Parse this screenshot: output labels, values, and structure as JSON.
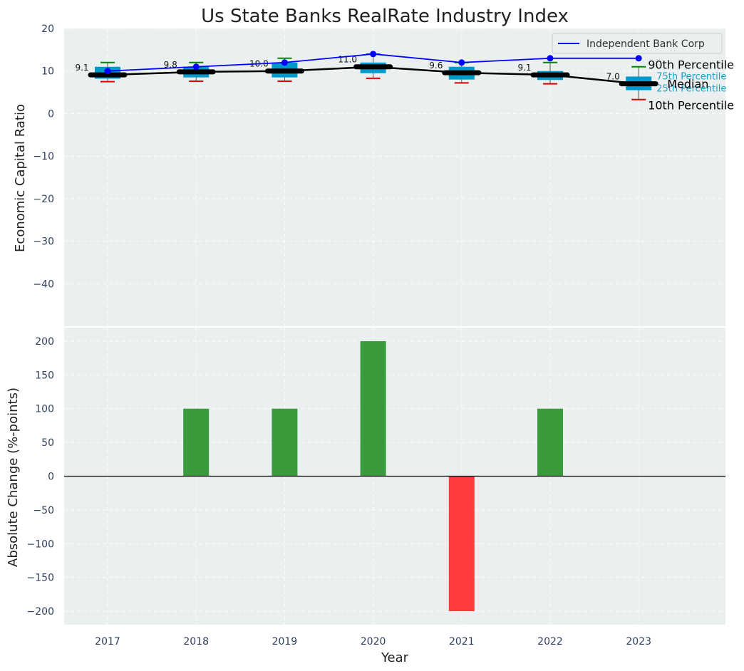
{
  "colors": {
    "panel_bg": "#eaeff0",
    "box": "#0099cc",
    "median_line": "#000000",
    "bank_line": "#0000ff",
    "whisker_top": "#008800",
    "whisker_bottom": "#dd0000",
    "bar_pos": "#3a9b3c",
    "bar_neg": "#ff3b3f"
  },
  "chart_data": [
    {
      "type": "box",
      "title": "Us State Banks RealRate Industry Index",
      "ylabel": "Economic Capital Ratio",
      "ylim": [
        -50,
        20
      ],
      "yticks": [
        20,
        10,
        0,
        -10,
        -20,
        -30,
        -40
      ],
      "categories": [
        "2017",
        "2018",
        "2019",
        "2020",
        "2021",
        "2022",
        "2023"
      ],
      "p10": [
        7.5,
        7.6,
        7.6,
        8.3,
        7.2,
        7.0,
        3.3
      ],
      "p25": [
        8.2,
        8.5,
        8.5,
        9.5,
        8.0,
        7.9,
        5.5
      ],
      "median": [
        9.1,
        9.8,
        10.0,
        11.0,
        9.6,
        9.1,
        7.0
      ],
      "p75": [
        11.0,
        11.0,
        12.0,
        12.0,
        11.0,
        10.0,
        8.7
      ],
      "p90": [
        12.0,
        12.0,
        13.0,
        14.0,
        12.0,
        12.0,
        11.0
      ],
      "median_labels": [
        "9.1",
        "9.8",
        "10.0",
        "11.0",
        "9.6",
        "9.1",
        "7.0"
      ],
      "series": [
        {
          "name": "Independent Bank Corp",
          "values": [
            10,
            11,
            12,
            14,
            12,
            13,
            13
          ]
        }
      ],
      "legend": "top-right",
      "annotations": {
        "p90": "90th Percentile",
        "p75": "75th Percentile",
        "median": "Median",
        "p25": "25th Percentile",
        "p10": "10th Percentile"
      }
    },
    {
      "type": "bar",
      "xlabel": "Year",
      "ylabel": "Absolute Change (%-points)",
      "ylim": [
        -220,
        220
      ],
      "yticks": [
        200,
        150,
        100,
        50,
        0,
        -50,
        -100,
        -150,
        -200
      ],
      "categories": [
        "2017",
        "2018",
        "2019",
        "2020",
        "2021",
        "2022",
        "2023"
      ],
      "values": [
        0,
        100,
        100,
        200,
        -200,
        100,
        0
      ]
    }
  ]
}
